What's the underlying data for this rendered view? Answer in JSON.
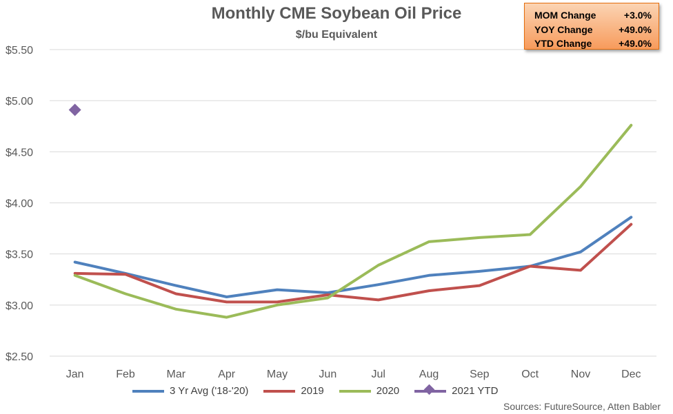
{
  "chart_data": {
    "type": "line",
    "title": "Monthly CME Soybean Oil Price",
    "subtitle": "$/bu Equivalent",
    "categories": [
      "Jan",
      "Feb",
      "Mar",
      "Apr",
      "May",
      "Jun",
      "Jul",
      "Aug",
      "Sep",
      "Oct",
      "Nov",
      "Dec"
    ],
    "ylim": [
      2.5,
      5.5
    ],
    "y_ticks": [
      "$2.50",
      "$3.00",
      "$3.50",
      "$4.00",
      "$4.50",
      "$5.00",
      "$5.50"
    ],
    "y_tick_values": [
      2.5,
      3.0,
      3.5,
      4.0,
      4.5,
      5.0,
      5.5
    ],
    "grid": "horizontal",
    "legend_position": "bottom",
    "series": [
      {
        "name": "3 Yr Avg ('18-'20)",
        "color": "#4f81bd",
        "marker": "line",
        "values": [
          3.42,
          3.31,
          3.19,
          3.08,
          3.15,
          3.12,
          3.2,
          3.29,
          3.33,
          3.38,
          3.52,
          3.86
        ]
      },
      {
        "name": "2019",
        "color": "#c0504d",
        "marker": "line",
        "values": [
          3.31,
          3.3,
          3.11,
          3.03,
          3.03,
          3.1,
          3.05,
          3.14,
          3.19,
          3.38,
          3.34,
          3.79
        ]
      },
      {
        "name": "2020",
        "color": "#9bbb59",
        "marker": "line",
        "values": [
          3.29,
          3.11,
          2.96,
          2.88,
          3.0,
          3.07,
          3.39,
          3.62,
          3.66,
          3.69,
          4.16,
          4.76
        ]
      },
      {
        "name": "2021 YTD",
        "color": "#8064a2",
        "marker": "diamond",
        "values": [
          4.91,
          null,
          null,
          null,
          null,
          null,
          null,
          null,
          null,
          null,
          null,
          null
        ]
      }
    ]
  },
  "change_box": [
    {
      "label": "MOM Change",
      "value": "+3.0%"
    },
    {
      "label": "YOY Change",
      "value": "+49.0%"
    },
    {
      "label": "YTD Change",
      "value": "+49.0%"
    }
  ],
  "sources": "Sources: FutureSource, Atten Babler"
}
